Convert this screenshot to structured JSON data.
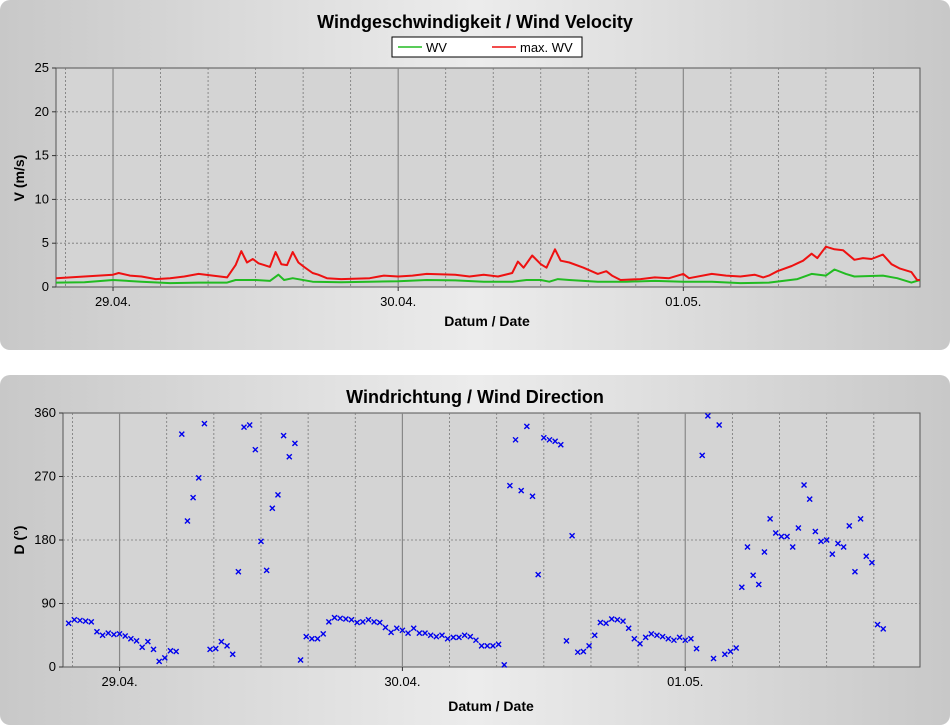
{
  "chart_data": [
    {
      "type": "line",
      "title": "Windgeschwindigkeit / Wind Velocity",
      "xlabel": "Datum / Date",
      "ylabel": "V (m/s)",
      "ylim": [
        0,
        25
      ],
      "yticks": [
        "0",
        "5",
        "10",
        "15",
        "20",
        "25"
      ],
      "xticks": [
        "29.04.",
        "30.04.",
        "01.05."
      ],
      "x_range_days": [
        -0.2,
        2.83
      ],
      "grid": true,
      "legend_position": "top-center",
      "series": [
        {
          "name": "WV",
          "color": "#22bb22",
          "values": [
            [
              -0.2,
              0.5
            ],
            [
              -0.1,
              0.55
            ],
            [
              0,
              0.8
            ],
            [
              0.1,
              0.6
            ],
            [
              0.2,
              0.45
            ],
            [
              0.3,
              0.5
            ],
            [
              0.4,
              0.5
            ],
            [
              0.43,
              0.8
            ],
            [
              0.5,
              0.8
            ],
            [
              0.55,
              0.7
            ],
            [
              0.58,
              1.4
            ],
            [
              0.6,
              0.8
            ],
            [
              0.63,
              1.0
            ],
            [
              0.7,
              0.6
            ],
            [
              0.8,
              0.55
            ],
            [
              0.9,
              0.6
            ],
            [
              1.0,
              0.65
            ],
            [
              1.1,
              0.8
            ],
            [
              1.2,
              0.75
            ],
            [
              1.3,
              0.6
            ],
            [
              1.4,
              0.6
            ],
            [
              1.45,
              0.8
            ],
            [
              1.5,
              0.8
            ],
            [
              1.53,
              0.6
            ],
            [
              1.56,
              0.9
            ],
            [
              1.6,
              0.8
            ],
            [
              1.7,
              0.6
            ],
            [
              1.8,
              0.6
            ],
            [
              1.9,
              0.7
            ],
            [
              2.0,
              0.6
            ],
            [
              2.1,
              0.6
            ],
            [
              2.2,
              0.45
            ],
            [
              2.3,
              0.5
            ],
            [
              2.4,
              0.9
            ],
            [
              2.45,
              1.5
            ],
            [
              2.5,
              1.3
            ],
            [
              2.53,
              2.0
            ],
            [
              2.57,
              1.5
            ],
            [
              2.6,
              1.2
            ],
            [
              2.7,
              1.3
            ],
            [
              2.75,
              1.0
            ],
            [
              2.8,
              0.5
            ],
            [
              2.83,
              0.8
            ]
          ]
        },
        {
          "name": "max. WV",
          "color": "#ee1111",
          "values": [
            [
              -0.2,
              1.0
            ],
            [
              -0.15,
              1.1
            ],
            [
              -0.1,
              1.2
            ],
            [
              0,
              1.4
            ],
            [
              0.02,
              1.6
            ],
            [
              0.06,
              1.3
            ],
            [
              0.1,
              1.2
            ],
            [
              0.15,
              0.9
            ],
            [
              0.2,
              1.0
            ],
            [
              0.25,
              1.2
            ],
            [
              0.3,
              1.5
            ],
            [
              0.35,
              1.3
            ],
            [
              0.4,
              1.1
            ],
            [
              0.43,
              2.5
            ],
            [
              0.45,
              4.1
            ],
            [
              0.47,
              2.8
            ],
            [
              0.49,
              3.2
            ],
            [
              0.51,
              2.7
            ],
            [
              0.53,
              2.5
            ],
            [
              0.55,
              2.3
            ],
            [
              0.57,
              4.0
            ],
            [
              0.59,
              2.6
            ],
            [
              0.61,
              2.5
            ],
            [
              0.63,
              4.0
            ],
            [
              0.65,
              2.8
            ],
            [
              0.67,
              2.3
            ],
            [
              0.7,
              1.6
            ],
            [
              0.72,
              1.4
            ],
            [
              0.75,
              1.0
            ],
            [
              0.8,
              0.9
            ],
            [
              0.9,
              1.0
            ],
            [
              0.95,
              1.3
            ],
            [
              1.0,
              1.2
            ],
            [
              1.05,
              1.3
            ],
            [
              1.1,
              1.5
            ],
            [
              1.2,
              1.4
            ],
            [
              1.25,
              1.2
            ],
            [
              1.3,
              1.4
            ],
            [
              1.35,
              1.2
            ],
            [
              1.4,
              1.6
            ],
            [
              1.42,
              2.9
            ],
            [
              1.44,
              2.2
            ],
            [
              1.47,
              3.6
            ],
            [
              1.5,
              2.6
            ],
            [
              1.52,
              2.2
            ],
            [
              1.55,
              4.3
            ],
            [
              1.57,
              3.0
            ],
            [
              1.6,
              2.8
            ],
            [
              1.65,
              2.2
            ],
            [
              1.7,
              1.5
            ],
            [
              1.73,
              1.8
            ],
            [
              1.75,
              1.3
            ],
            [
              1.78,
              0.8
            ],
            [
              1.85,
              0.9
            ],
            [
              1.9,
              1.1
            ],
            [
              1.95,
              1.0
            ],
            [
              2.0,
              1.5
            ],
            [
              2.02,
              1.0
            ],
            [
              2.1,
              1.5
            ],
            [
              2.15,
              1.3
            ],
            [
              2.2,
              1.2
            ],
            [
              2.25,
              1.4
            ],
            [
              2.28,
              1.1
            ],
            [
              2.3,
              1.3
            ],
            [
              2.33,
              1.8
            ],
            [
              2.38,
              2.4
            ],
            [
              2.4,
              2.7
            ],
            [
              2.42,
              3.0
            ],
            [
              2.45,
              3.8
            ],
            [
              2.47,
              3.3
            ],
            [
              2.5,
              4.6
            ],
            [
              2.53,
              4.3
            ],
            [
              2.56,
              4.2
            ],
            [
              2.6,
              3.1
            ],
            [
              2.63,
              3.3
            ],
            [
              2.66,
              3.2
            ],
            [
              2.7,
              3.7
            ],
            [
              2.73,
              2.6
            ],
            [
              2.76,
              2.1
            ],
            [
              2.8,
              1.7
            ],
            [
              2.82,
              0.8
            ],
            [
              2.83,
              0.8
            ]
          ]
        }
      ]
    },
    {
      "type": "scatter",
      "title": "Windrichtung / Wind Direction",
      "xlabel": "Datum / Date",
      "ylabel": "D (°)",
      "ylim": [
        0,
        360
      ],
      "yticks": [
        "0",
        "90",
        "180",
        "270",
        "360"
      ],
      "xticks": [
        "29.04.",
        "30.04.",
        "01.05."
      ],
      "x_range_days": [
        -0.2,
        2.83
      ],
      "grid": true,
      "series": [
        {
          "name": "",
          "color": "#0000ee",
          "values": [
            [
              -0.18,
              62
            ],
            [
              -0.16,
              67
            ],
            [
              -0.14,
              66
            ],
            [
              -0.12,
              65
            ],
            [
              -0.1,
              64
            ],
            [
              -0.08,
              50
            ],
            [
              -0.06,
              45
            ],
            [
              -0.04,
              48
            ],
            [
              -0.02,
              46
            ],
            [
              0,
              47
            ],
            [
              0.02,
              44
            ],
            [
              0.04,
              40
            ],
            [
              0.06,
              37
            ],
            [
              0.08,
              28
            ],
            [
              0.1,
              36
            ],
            [
              0.12,
              25
            ],
            [
              0.14,
              8
            ],
            [
              0.16,
              13
            ],
            [
              0.18,
              23
            ],
            [
              0.2,
              22
            ],
            [
              0.22,
              330
            ],
            [
              0.24,
              207
            ],
            [
              0.26,
              240
            ],
            [
              0.28,
              268
            ],
            [
              0.3,
              345
            ],
            [
              0.32,
              25
            ],
            [
              0.34,
              26
            ],
            [
              0.36,
              36
            ],
            [
              0.38,
              30
            ],
            [
              0.4,
              18
            ],
            [
              0.42,
              135
            ],
            [
              0.44,
              340
            ],
            [
              0.46,
              343
            ],
            [
              0.48,
              308
            ],
            [
              0.5,
              178
            ],
            [
              0.52,
              137
            ],
            [
              0.54,
              225
            ],
            [
              0.56,
              244
            ],
            [
              0.58,
              328
            ],
            [
              0.6,
              298
            ],
            [
              0.62,
              317
            ],
            [
              0.64,
              10
            ],
            [
              0.66,
              43
            ],
            [
              0.68,
              40
            ],
            [
              0.7,
              40
            ],
            [
              0.72,
              47
            ],
            [
              0.74,
              64
            ],
            [
              0.76,
              70
            ],
            [
              0.78,
              69
            ],
            [
              0.8,
              68
            ],
            [
              0.82,
              67
            ],
            [
              0.84,
              63
            ],
            [
              0.86,
              64
            ],
            [
              0.88,
              67
            ],
            [
              0.9,
              64
            ],
            [
              0.92,
              63
            ],
            [
              0.94,
              56
            ],
            [
              0.96,
              49
            ],
            [
              0.98,
              55
            ],
            [
              1.0,
              52
            ],
            [
              1.02,
              48
            ],
            [
              1.04,
              55
            ],
            [
              1.06,
              48
            ],
            [
              1.08,
              48
            ],
            [
              1.1,
              45
            ],
            [
              1.12,
              43
            ],
            [
              1.14,
              45
            ],
            [
              1.16,
              40
            ],
            [
              1.18,
              42
            ],
            [
              1.2,
              42
            ],
            [
              1.22,
              45
            ],
            [
              1.24,
              43
            ],
            [
              1.26,
              38
            ],
            [
              1.28,
              30
            ],
            [
              1.3,
              30
            ],
            [
              1.32,
              30
            ],
            [
              1.34,
              32
            ],
            [
              1.36,
              3
            ],
            [
              1.38,
              257
            ],
            [
              1.4,
              322
            ],
            [
              1.42,
              250
            ],
            [
              1.44,
              341
            ],
            [
              1.46,
              242
            ],
            [
              1.48,
              131
            ],
            [
              1.5,
              325
            ],
            [
              1.52,
              322
            ],
            [
              1.54,
              320
            ],
            [
              1.56,
              315
            ],
            [
              1.58,
              37
            ],
            [
              1.6,
              186
            ],
            [
              1.62,
              21
            ],
            [
              1.64,
              22
            ],
            [
              1.66,
              30
            ],
            [
              1.68,
              45
            ],
            [
              1.7,
              63
            ],
            [
              1.72,
              62
            ],
            [
              1.74,
              68
            ],
            [
              1.76,
              67
            ],
            [
              1.78,
              65
            ],
            [
              1.8,
              55
            ],
            [
              1.82,
              40
            ],
            [
              1.84,
              33
            ],
            [
              1.86,
              42
            ],
            [
              1.88,
              47
            ],
            [
              1.9,
              45
            ],
            [
              1.92,
              43
            ],
            [
              1.94,
              40
            ],
            [
              1.96,
              38
            ],
            [
              1.98,
              42
            ],
            [
              2.0,
              38
            ],
            [
              2.02,
              40
            ],
            [
              2.04,
              26
            ],
            [
              2.06,
              300
            ],
            [
              2.08,
              356
            ],
            [
              2.1,
              12
            ],
            [
              2.12,
              343
            ],
            [
              2.14,
              18
            ],
            [
              2.16,
              22
            ],
            [
              2.18,
              27
            ],
            [
              2.2,
              113
            ],
            [
              2.22,
              170
            ],
            [
              2.24,
              130
            ],
            [
              2.26,
              117
            ],
            [
              2.28,
              163
            ],
            [
              2.3,
              210
            ],
            [
              2.32,
              190
            ],
            [
              2.34,
              185
            ],
            [
              2.36,
              185
            ],
            [
              2.38,
              170
            ],
            [
              2.4,
              197
            ],
            [
              2.42,
              258
            ],
            [
              2.44,
              238
            ],
            [
              2.46,
              192
            ],
            [
              2.48,
              178
            ],
            [
              2.5,
              180
            ],
            [
              2.52,
              160
            ],
            [
              2.54,
              175
            ],
            [
              2.56,
              170
            ],
            [
              2.58,
              200
            ],
            [
              2.6,
              135
            ],
            [
              2.62,
              210
            ],
            [
              2.64,
              157
            ],
            [
              2.66,
              148
            ],
            [
              2.68,
              60
            ],
            [
              2.7,
              54
            ]
          ]
        }
      ]
    }
  ]
}
